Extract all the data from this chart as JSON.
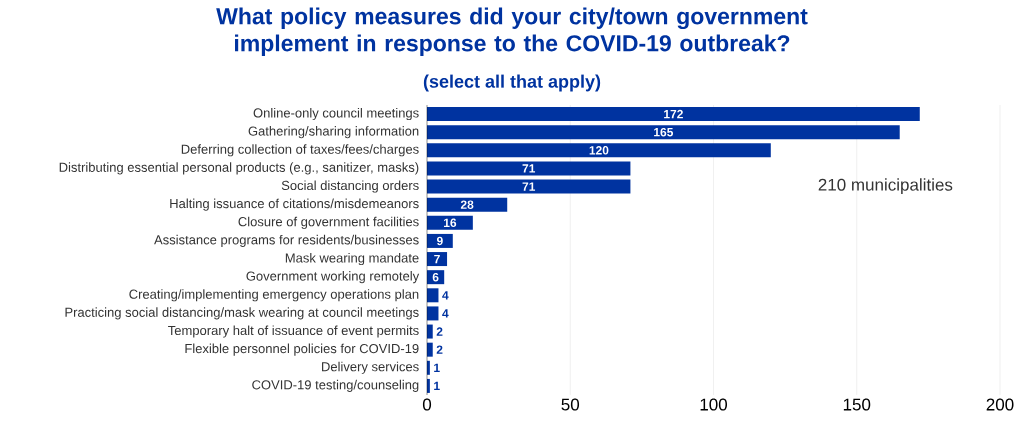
{
  "chart_data": {
    "type": "bar",
    "orientation": "horizontal",
    "title": "What policy measures did your city/town government implement in response to the COVID-19 outbreak?",
    "subtitle": "(select all that apply)",
    "categories": [
      "Online-only council meetings",
      "Gathering/sharing information",
      "Deferring collection of taxes/fees/charges",
      "Distributing essential personal products (e.g., sanitizer, masks)",
      "Social distancing orders",
      "Halting issuance of citations/misdemeanors",
      "Closure of government facilities",
      "Assistance programs for residents/businesses",
      "Mask wearing mandate",
      "Government working remotely",
      "Creating/implementing emergency operations plan",
      "Practicing social distancing/mask wearing at council meetings",
      "Temporary halt of issuance of event permits",
      "Flexible personnel policies for COVID-19",
      "Delivery services",
      "COVID-19 testing/counseling"
    ],
    "values": [
      172,
      165,
      120,
      71,
      71,
      28,
      16,
      9,
      7,
      6,
      4,
      4,
      2,
      2,
      1,
      1
    ],
    "color": "#0033a0",
    "xlim": [
      0,
      200
    ],
    "xticks": [
      0,
      50,
      100,
      150,
      200
    ],
    "grid": "x",
    "data_labels": true,
    "annotations": [
      "210 municipalities"
    ]
  }
}
